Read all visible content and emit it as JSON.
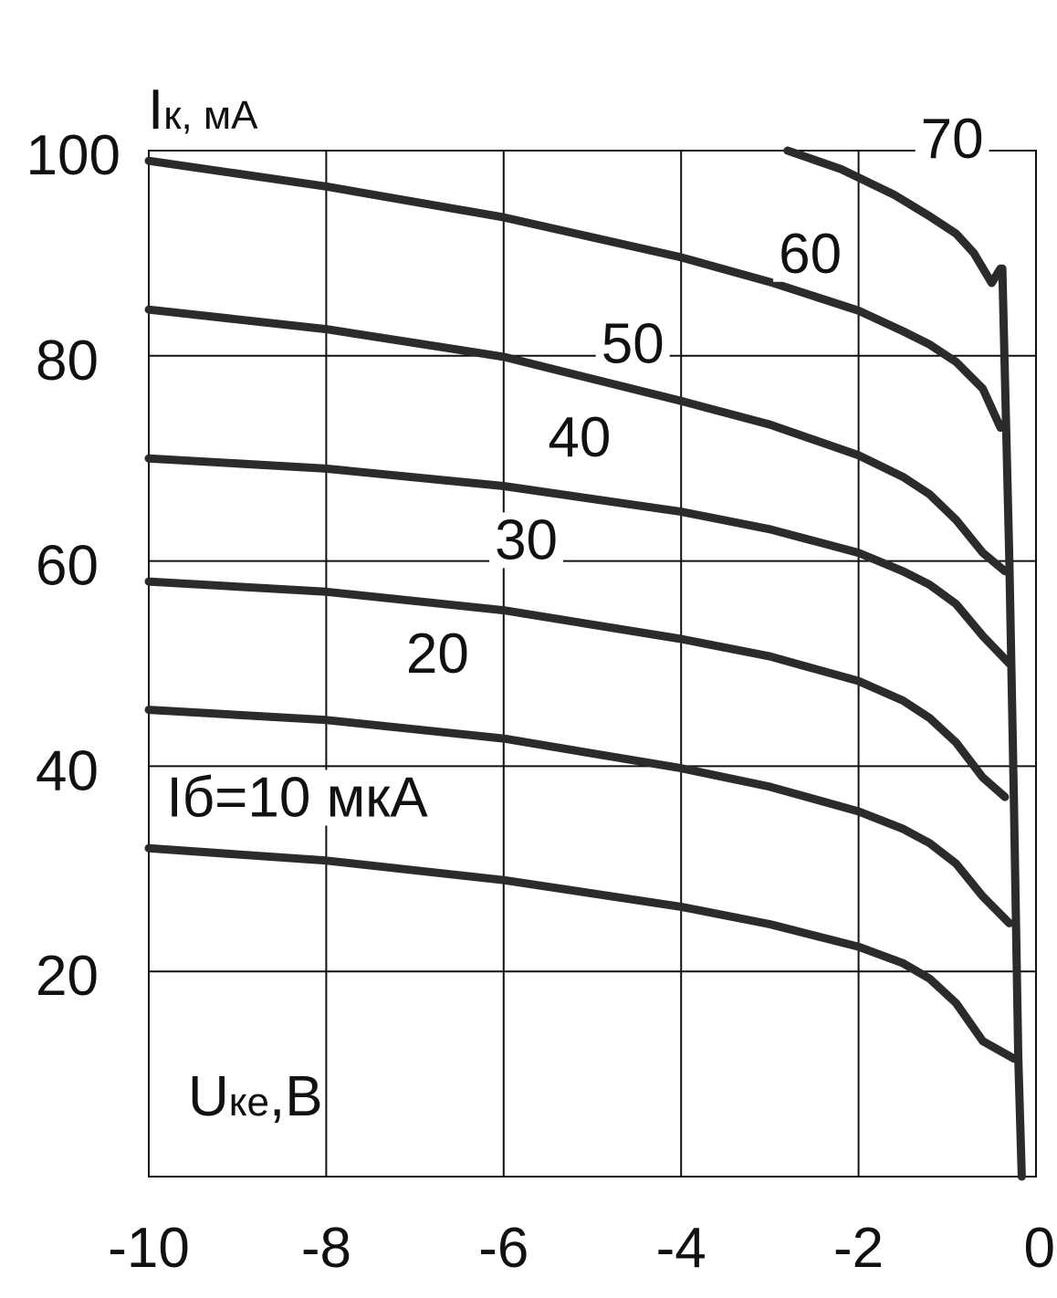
{
  "chart_data": {
    "type": "line",
    "ylabel": {
      "symbol": "I",
      "subscript": "к",
      "unit": ", мА"
    },
    "xlabel": {
      "symbol": "U",
      "subscript": "ке",
      "unit": ",В"
    },
    "xlim": [
      -10,
      0
    ],
    "ylim": [
      0,
      100
    ],
    "x_ticks": [
      -10,
      -8,
      -6,
      -4,
      -2,
      0
    ],
    "x_tick_labels": [
      "-10",
      "-8",
      "-6",
      "-4",
      "-2",
      "0"
    ],
    "y_ticks": [
      20,
      40,
      60,
      80,
      100
    ],
    "y_tick_labels": [
      "20",
      "40",
      "60",
      "80",
      "100"
    ],
    "grid": true,
    "series": [
      {
        "name": "Iб=10 мкА",
        "x": [
          -10,
          -8,
          -6,
          -4,
          -3,
          -2,
          -1.5,
          -1.2,
          -0.9,
          -0.6,
          -0.25
        ],
        "y": [
          32,
          30.8,
          28.9,
          26.3,
          24.6,
          22.4,
          20.8,
          19.3,
          16.9,
          13.2,
          11.5
        ]
      },
      {
        "name": "20",
        "x": [
          -10,
          -8,
          -6,
          -4,
          -3,
          -2,
          -1.5,
          -1.2,
          -0.9,
          -0.6,
          -0.3
        ],
        "y": [
          45.5,
          44.5,
          42.7,
          39.8,
          38,
          35.6,
          33.9,
          32.5,
          30.5,
          27.3,
          24.7
        ]
      },
      {
        "name": "30",
        "x": [
          -10,
          -8,
          -6,
          -4,
          -3,
          -2,
          -1.5,
          -1.2,
          -0.9,
          -0.6,
          -0.35
        ],
        "y": [
          58,
          57,
          55.2,
          52.4,
          50.7,
          48.3,
          46.4,
          44.7,
          42.3,
          38.9,
          37
        ]
      },
      {
        "name": "40",
        "x": [
          -10,
          -8,
          -6,
          -4,
          -3,
          -2,
          -1.5,
          -1.2,
          -0.9,
          -0.6,
          -0.3
        ],
        "y": [
          70,
          69,
          67.3,
          64.8,
          63.1,
          60.8,
          59,
          57.7,
          55.8,
          52.7,
          50
        ]
      },
      {
        "name": "50",
        "x": [
          -10,
          -8,
          -6,
          -4,
          -3,
          -2,
          -1.5,
          -1.2,
          -0.9,
          -0.6,
          -0.35
        ],
        "y": [
          84.5,
          82.6,
          79.9,
          75.6,
          73.3,
          70.3,
          68.2,
          66.5,
          64,
          60.8,
          59
        ]
      },
      {
        "name": "60",
        "x": [
          -10,
          -8,
          -6,
          -4,
          -3,
          -2,
          -1.5,
          -1.2,
          -0.9,
          -0.6,
          -0.4
        ],
        "y": [
          99,
          96.5,
          93.5,
          89.6,
          87.2,
          84.4,
          82.4,
          81.1,
          79.4,
          76.8,
          73
        ]
      },
      {
        "name": "70",
        "x": [
          -2.8,
          -2.2,
          -1.6,
          -1.2,
          -0.9,
          -0.7,
          -0.5,
          -0.4
        ],
        "y": [
          100,
          98.2,
          95.7,
          93.6,
          91.9,
          90,
          87.1,
          88.5
        ]
      },
      {
        "name": "",
        "x": [
          -0.38,
          -0.3,
          -0.25,
          -0.2,
          -0.16
        ],
        "y": [
          88.5,
          60,
          37,
          11.5,
          0
        ]
      }
    ],
    "curve_labels": [
      {
        "text": "Iб=10 мкА",
        "x": -9.8,
        "y": 35.1
      },
      {
        "text": "20",
        "x": -7.1,
        "y": 49.1
      },
      {
        "text": "30",
        "x": -6.1,
        "y": 60.2
      },
      {
        "text": "40",
        "x": -5.5,
        "y": 70.2
      },
      {
        "text": "50",
        "x": -4.9,
        "y": 79.3
      },
      {
        "text": "60",
        "x": -2.9,
        "y": 88.1
      },
      {
        "text": "70",
        "x": -1.3,
        "y": 99.3
      }
    ]
  }
}
